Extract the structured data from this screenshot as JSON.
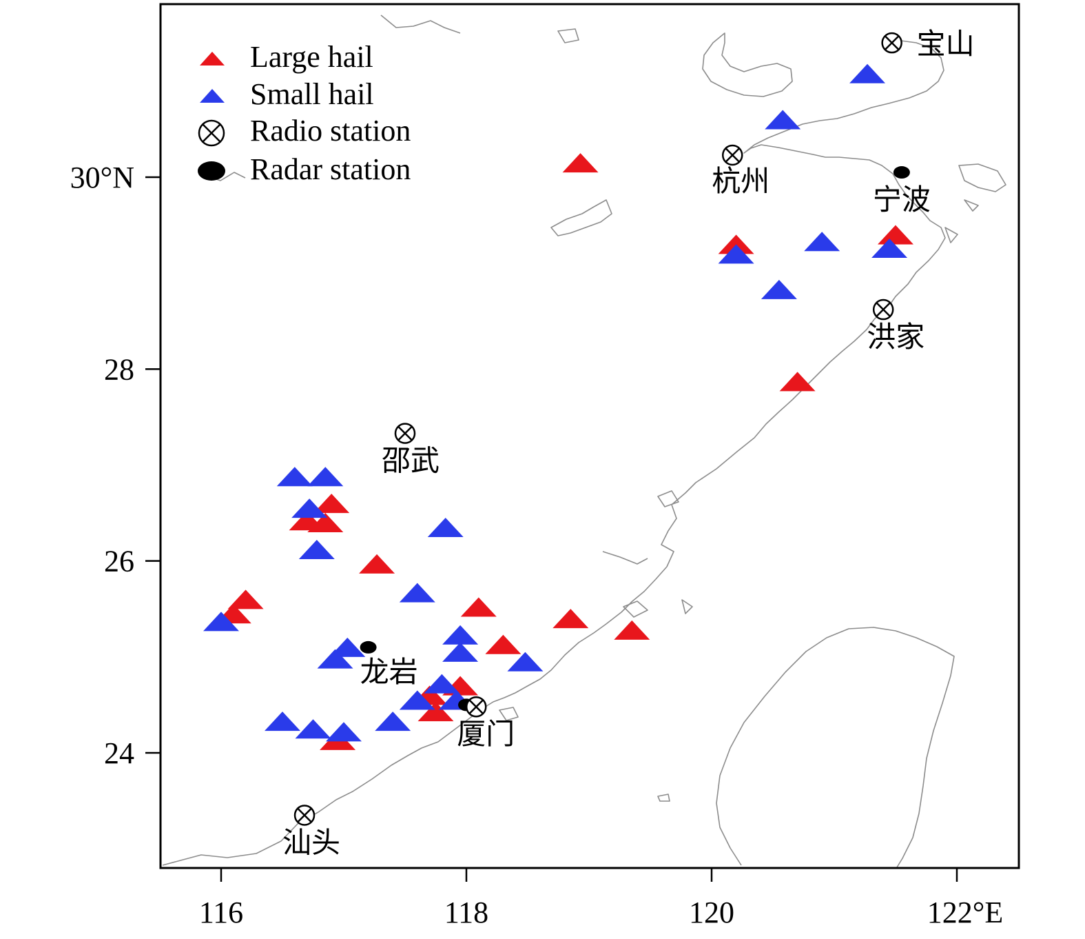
{
  "chart_data": {
    "type": "scatter",
    "xlim": [
      115.5,
      122.5
    ],
    "ylim": [
      22.8,
      31.8
    ],
    "x_ticks": [
      {
        "value": 116,
        "label": "116"
      },
      {
        "value": 118,
        "label": "118"
      },
      {
        "value": 120,
        "label": "120"
      },
      {
        "value": 122,
        "label": "122°E"
      }
    ],
    "y_ticks": [
      {
        "value": 24,
        "label": "24"
      },
      {
        "value": 26,
        "label": "26"
      },
      {
        "value": 28,
        "label": "28"
      },
      {
        "value": 30,
        "label": "30°N"
      }
    ],
    "legend": [
      {
        "key": "large_hail",
        "label": "Large hail",
        "marker": "triangle",
        "color": "#e8161c"
      },
      {
        "key": "small_hail",
        "label": "Small hail",
        "marker": "triangle",
        "color": "#2a3bea"
      },
      {
        "key": "radio_station",
        "label": "Radio station",
        "marker": "circle-cross",
        "color": "#000000"
      },
      {
        "key": "radar_station",
        "label": "Radar station",
        "marker": "dot",
        "color": "#000000"
      }
    ],
    "large_hail": [
      {
        "lon": 118.93,
        "lat": 30.15
      },
      {
        "lon": 120.2,
        "lat": 29.3
      },
      {
        "lon": 121.5,
        "lat": 29.4
      },
      {
        "lon": 120.7,
        "lat": 27.87
      },
      {
        "lon": 116.9,
        "lat": 26.6
      },
      {
        "lon": 116.7,
        "lat": 26.42
      },
      {
        "lon": 116.85,
        "lat": 26.4
      },
      {
        "lon": 117.27,
        "lat": 25.97
      },
      {
        "lon": 116.2,
        "lat": 25.6
      },
      {
        "lon": 116.1,
        "lat": 25.45
      },
      {
        "lon": 118.1,
        "lat": 25.52
      },
      {
        "lon": 118.85,
        "lat": 25.4
      },
      {
        "lon": 119.35,
        "lat": 25.28
      },
      {
        "lon": 118.3,
        "lat": 25.13
      },
      {
        "lon": 117.95,
        "lat": 24.7
      },
      {
        "lon": 117.7,
        "lat": 24.6
      },
      {
        "lon": 117.75,
        "lat": 24.43
      },
      {
        "lon": 116.95,
        "lat": 24.13
      }
    ],
    "small_hail": [
      {
        "lon": 121.27,
        "lat": 31.08
      },
      {
        "lon": 120.58,
        "lat": 30.6
      },
      {
        "lon": 120.9,
        "lat": 29.33
      },
      {
        "lon": 121.45,
        "lat": 29.26
      },
      {
        "lon": 120.2,
        "lat": 29.2
      },
      {
        "lon": 120.55,
        "lat": 28.83
      },
      {
        "lon": 116.6,
        "lat": 26.88
      },
      {
        "lon": 116.85,
        "lat": 26.88
      },
      {
        "lon": 116.72,
        "lat": 26.55
      },
      {
        "lon": 117.83,
        "lat": 26.35
      },
      {
        "lon": 116.78,
        "lat": 26.12
      },
      {
        "lon": 117.6,
        "lat": 25.67
      },
      {
        "lon": 116.0,
        "lat": 25.37
      },
      {
        "lon": 117.95,
        "lat": 25.23
      },
      {
        "lon": 117.95,
        "lat": 25.05
      },
      {
        "lon": 117.03,
        "lat": 25.1
      },
      {
        "lon": 116.93,
        "lat": 24.98
      },
      {
        "lon": 118.48,
        "lat": 24.95
      },
      {
        "lon": 117.8,
        "lat": 24.72
      },
      {
        "lon": 117.6,
        "lat": 24.55
      },
      {
        "lon": 117.92,
        "lat": 24.55
      },
      {
        "lon": 116.5,
        "lat": 24.33
      },
      {
        "lon": 117.4,
        "lat": 24.33
      },
      {
        "lon": 116.75,
        "lat": 24.25
      },
      {
        "lon": 117.0,
        "lat": 24.22
      }
    ],
    "radio_stations": [
      {
        "name": "宝山",
        "lon": 121.47,
        "lat": 31.4
      },
      {
        "name": "杭州",
        "lon": 120.17,
        "lat": 30.23
      },
      {
        "name": "洪家",
        "lon": 121.4,
        "lat": 28.62
      },
      {
        "name": "邵武",
        "lon": 117.5,
        "lat": 27.33
      },
      {
        "name": "厦门",
        "lon": 118.08,
        "lat": 24.48
      },
      {
        "name": "汕头",
        "lon": 116.68,
        "lat": 23.35
      }
    ],
    "radar_stations": [
      {
        "name": "宁波",
        "lon": 121.55,
        "lat": 30.05
      },
      {
        "name": "龙岩",
        "lon": 117.2,
        "lat": 25.1
      },
      {
        "name": "厦门",
        "lon": 118.0,
        "lat": 24.5
      }
    ]
  }
}
